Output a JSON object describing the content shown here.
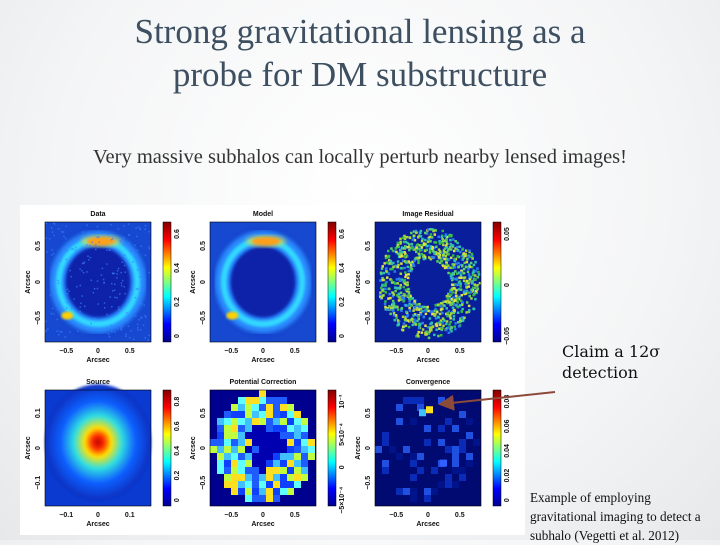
{
  "title_lines": [
    "Strong gravitational lensing as a",
    "probe for DM substructure"
  ],
  "subtitle": "Very massive subhalos can locally perturb nearby lensed images!",
  "figure": {
    "panels": [
      {
        "title": "Data",
        "x_label": "Arcsec",
        "y_label": "Arcsec",
        "x_ticks": [
          "−0.5",
          "0",
          "0.5"
        ],
        "y_ticks": [
          "0.5",
          "0",
          "−0.5"
        ],
        "colorbar_ticks": [
          "0",
          "0.2",
          "0.4",
          "0.6"
        ]
      },
      {
        "title": "Model",
        "x_label": "Arcsec",
        "y_label": "Arcsec",
        "x_ticks": [
          "−0.5",
          "0",
          "0.5"
        ],
        "y_ticks": [
          "0.5",
          "0",
          "−0.5"
        ],
        "colorbar_ticks": [
          "0",
          "0.2",
          "0.4",
          "0.6"
        ]
      },
      {
        "title": "Image Residual",
        "x_label": "Arcsec",
        "y_label": "Arcsec",
        "x_ticks": [
          "−0.5",
          "0",
          "0.5"
        ],
        "y_ticks": [
          "0.5",
          "0",
          "−0.5"
        ],
        "colorbar_ticks": [
          "−0.05",
          "0",
          "0.05"
        ]
      },
      {
        "title": "Source",
        "x_label": "Arcsec",
        "y_label": "Arcsec",
        "x_ticks": [
          "−0.1",
          "0",
          "0.1"
        ],
        "y_ticks": [
          "0.1",
          "0",
          "−0.1"
        ],
        "colorbar_ticks": [
          "0",
          "0.2",
          "0.4",
          "0.6",
          "0.8"
        ]
      },
      {
        "title": "Potential Correction",
        "x_label": "Arcsec",
        "y_label": "Arcsec",
        "x_ticks": [
          "−0.5",
          "0",
          "0.5"
        ],
        "y_ticks": [
          "0.5",
          "0",
          "−0.5"
        ],
        "colorbar_ticks": [
          "−5×10⁻⁴",
          "0",
          "5×10⁻⁴",
          "10⁻³"
        ]
      },
      {
        "title": "Convergence",
        "x_label": "Arcsec",
        "y_label": "Arcsec",
        "x_ticks": [
          "−0.5",
          "0",
          "0.5"
        ],
        "y_ticks": [
          "0.5",
          "0",
          "−0.5"
        ],
        "colorbar_ticks": [
          "0",
          "0.02",
          "0.04",
          "0.06",
          "0.08"
        ]
      }
    ]
  },
  "annotation_lines": [
    "Claim a 12σ",
    "detection"
  ],
  "caption_lines": [
    "Example of employing",
    "gravitational imaging to detect a",
    "subhalo (Vegetti et al. 2012)"
  ]
}
